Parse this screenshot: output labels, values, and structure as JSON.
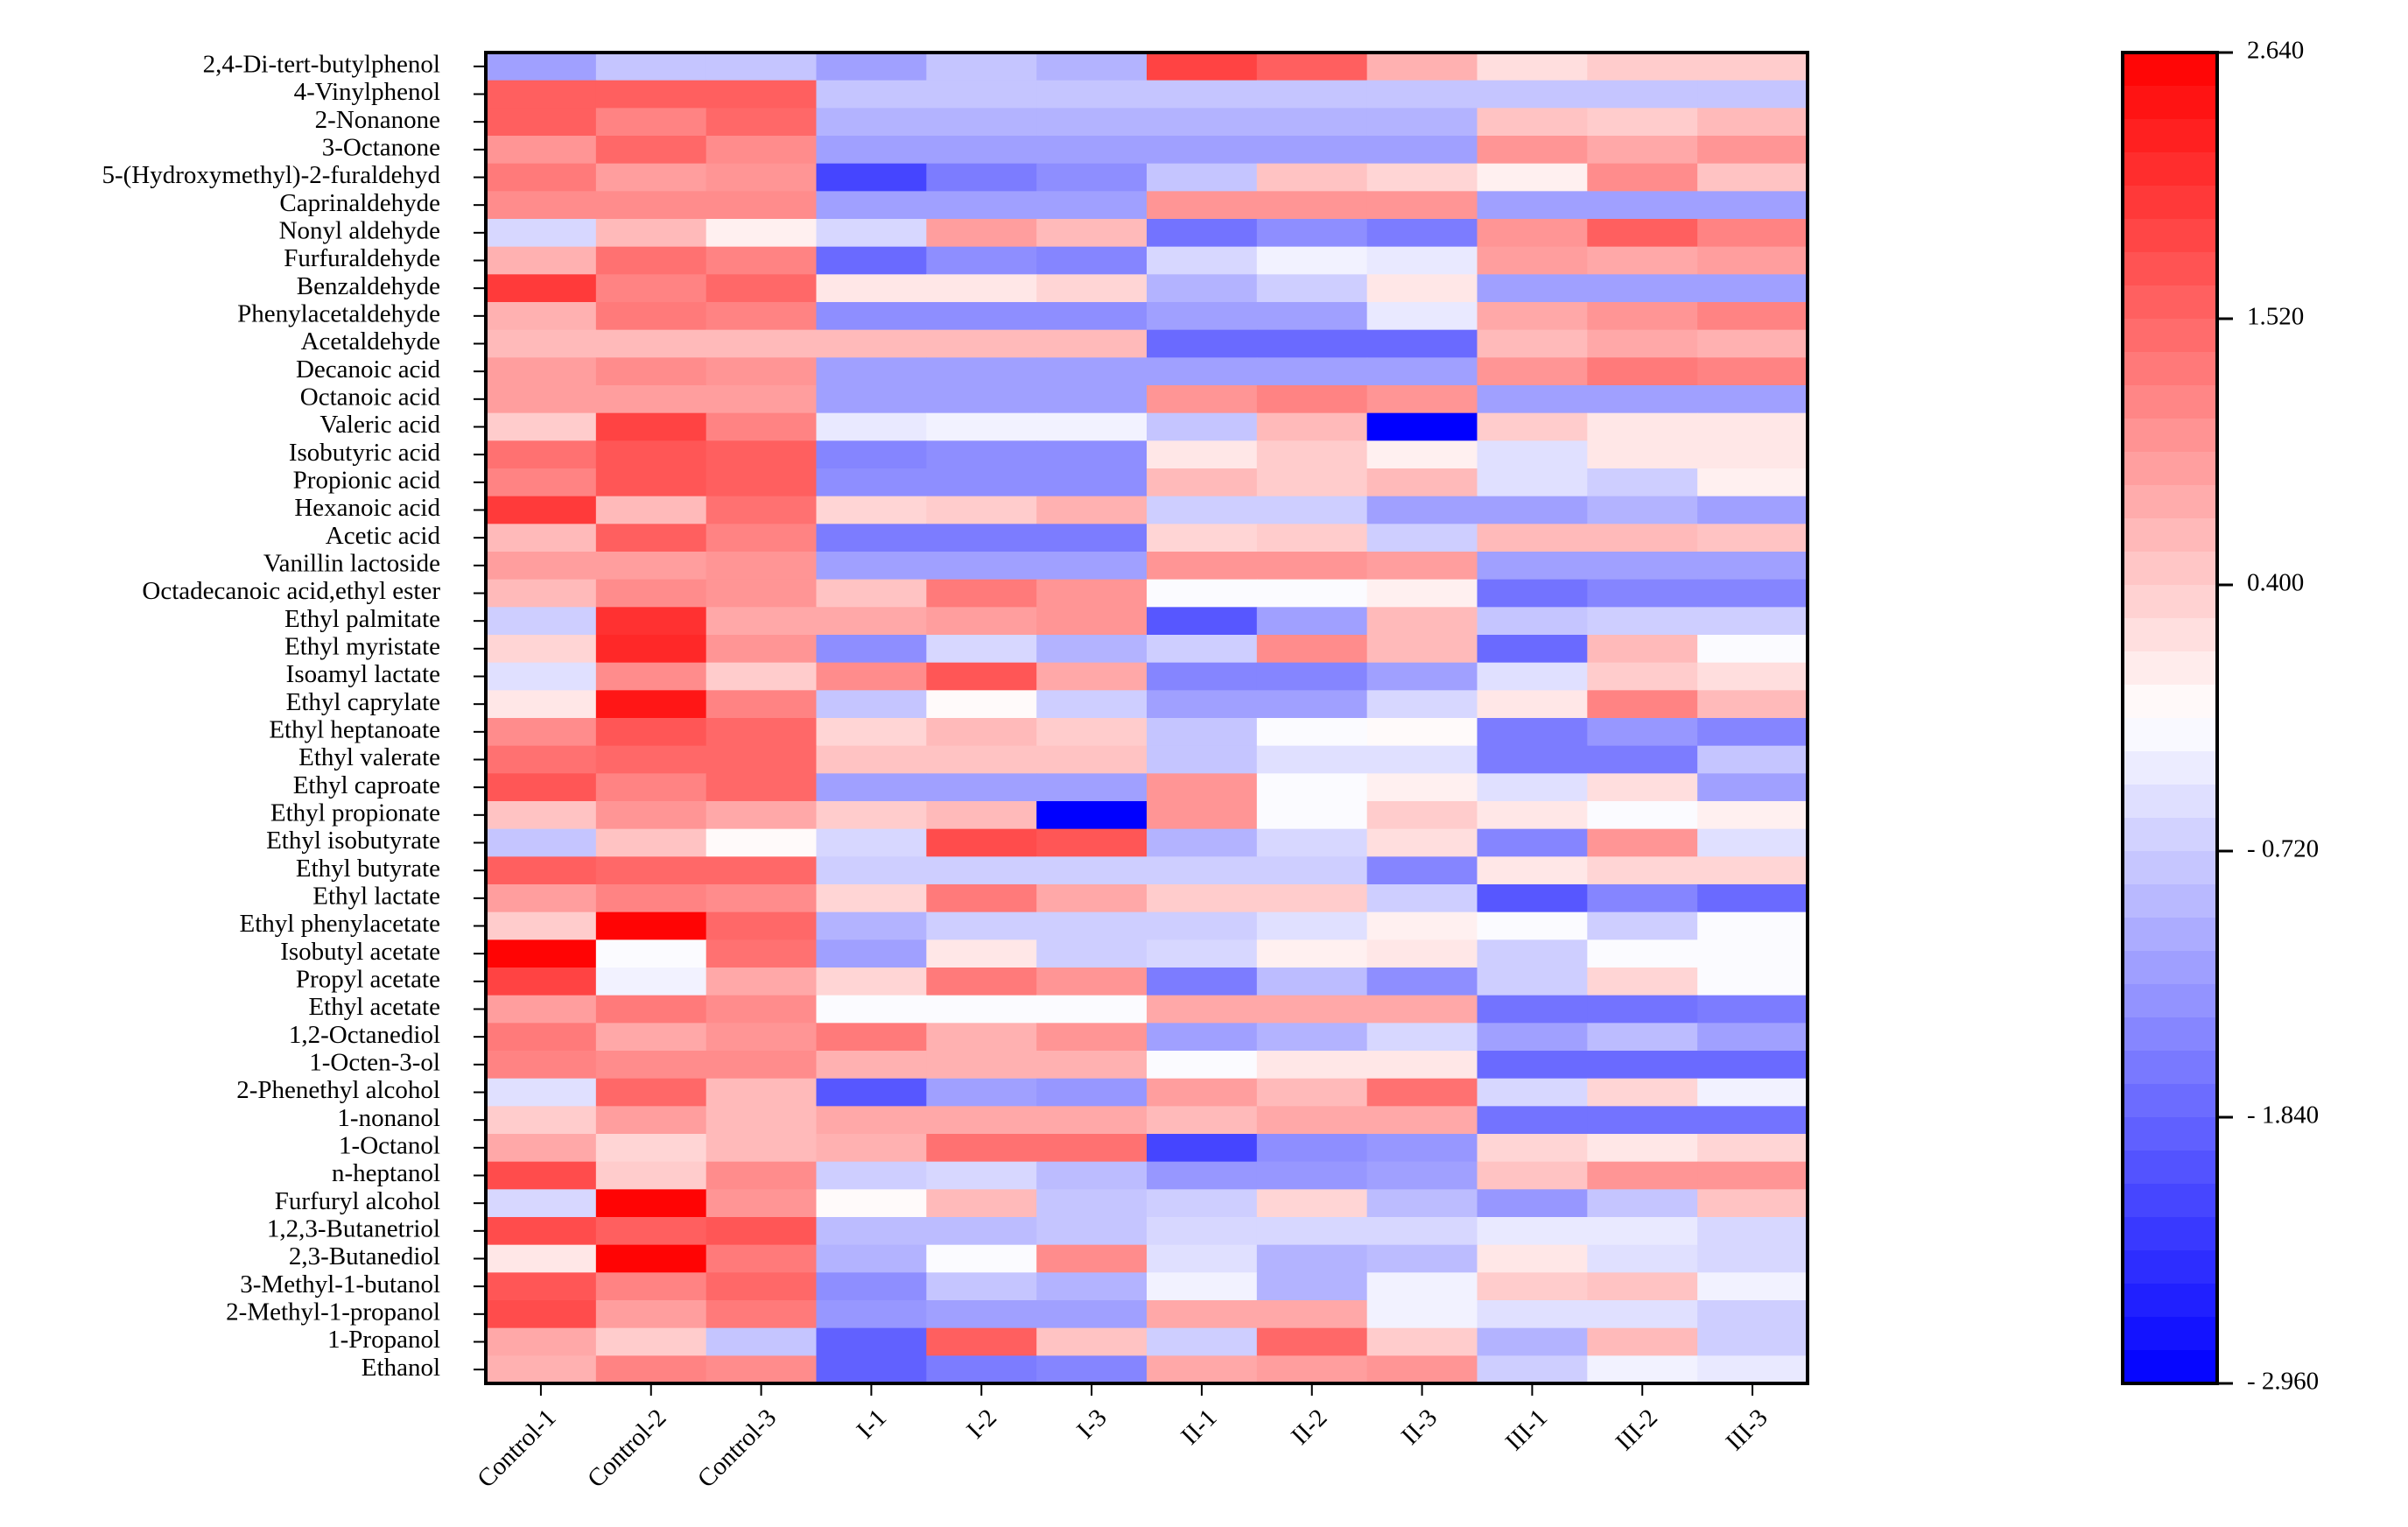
{
  "chart_data": {
    "type": "heatmap",
    "title": "",
    "xlabel": "",
    "ylabel": "",
    "columns": [
      "Control-1",
      "Control-2",
      "Control-3",
      "I-1",
      "I-2",
      "I-3",
      "II-1",
      "II-2",
      "II-3",
      "III-1",
      "III-2",
      "III-3"
    ],
    "rows": [
      "2,4-Di-tert-butylphenol",
      "4-Vinylphenol",
      "2-Nonanone",
      "3-Octanone",
      "5-(Hydroxymethyl)-2-furaldehyd",
      "Caprinaldehyde",
      "Nonyl aldehyde",
      "Furfuraldehyde",
      "Benzaldehyde",
      "Phenylacetaldehyde",
      "Acetaldehyde",
      "Decanoic acid",
      "Octanoic acid",
      "Valeric acid",
      "Isobutyric acid",
      "Propionic acid",
      "Hexanoic acid",
      "Acetic acid",
      "Vanillin lactoside",
      "Octadecanoic acid,ethyl ester",
      "Ethyl palmitate",
      "Ethyl myristate",
      "Isoamyl lactate",
      "Ethyl caprylate",
      "Ethyl heptanoate",
      "Ethyl valerate",
      "Ethyl caproate",
      "Ethyl propionate",
      "Ethyl isobutyrate",
      "Ethyl butyrate",
      "Ethyl lactate",
      "Ethyl phenylacetate",
      "Isobutyl acetate",
      "Propyl acetate",
      "Ethyl acetate",
      "1,2-Octanediol",
      "1-Octen-3-ol",
      "2-Phenethyl alcohol",
      "1-nonanol",
      "1-Octanol",
      "n-heptanol",
      "Furfuryl alcohol",
      "1,2,3-Butanetriol",
      "2,3-Butanediol",
      "3-Methyl-1-butanol",
      "2-Methyl-1-propanol",
      "1-Propanol",
      "Ethanol"
    ],
    "values": [
      [
        -1.2,
        -0.8,
        -0.8,
        -1.2,
        -0.8,
        -1.0,
        1.9,
        1.6,
        0.7,
        0.2,
        0.4,
        0.4
      ],
      [
        1.6,
        1.6,
        1.6,
        -0.8,
        -0.8,
        -0.8,
        -0.8,
        -0.8,
        -0.8,
        -0.8,
        -0.8,
        -0.8
      ],
      [
        1.6,
        1.2,
        1.5,
        -1.0,
        -1.0,
        -1.0,
        -1.0,
        -1.0,
        -1.0,
        0.5,
        0.4,
        0.6
      ],
      [
        1.0,
        1.5,
        1.1,
        -1.2,
        -1.2,
        -1.2,
        -1.2,
        -1.2,
        -1.2,
        1.0,
        0.8,
        1.0
      ],
      [
        1.3,
        0.9,
        1.0,
        -2.2,
        -1.6,
        -1.4,
        -0.8,
        0.5,
        0.3,
        0.0,
        1.1,
        0.5
      ],
      [
        1.1,
        1.1,
        1.1,
        -1.2,
        -1.2,
        -1.2,
        1.0,
        1.0,
        1.0,
        -1.2,
        -1.2,
        -1.2
      ],
      [
        -0.6,
        0.6,
        0.0,
        -0.6,
        0.9,
        0.6,
        -1.7,
        -1.4,
        -1.6,
        1.0,
        1.6,
        1.2
      ],
      [
        0.7,
        1.4,
        1.2,
        -1.8,
        -1.4,
        -1.5,
        -0.6,
        -0.3,
        -0.4,
        0.9,
        0.8,
        0.9
      ],
      [
        2.0,
        1.2,
        1.5,
        0.1,
        0.1,
        0.3,
        -1.0,
        -0.7,
        0.1,
        -1.2,
        -1.2,
        -1.2
      ],
      [
        0.7,
        1.3,
        1.2,
        -1.4,
        -1.4,
        -1.4,
        -1.2,
        -1.2,
        -0.4,
        0.8,
        1.0,
        1.2
      ],
      [
        0.6,
        0.6,
        0.6,
        0.6,
        0.6,
        0.6,
        -1.8,
        -1.8,
        -1.8,
        0.6,
        0.8,
        0.7
      ],
      [
        0.9,
        1.1,
        1.0,
        -1.2,
        -1.2,
        -1.2,
        -1.2,
        -1.2,
        -1.2,
        1.0,
        1.3,
        1.2
      ],
      [
        0.9,
        0.9,
        0.9,
        -1.2,
        -1.2,
        -1.2,
        1.0,
        1.2,
        1.0,
        -1.2,
        -1.2,
        -1.2
      ],
      [
        0.4,
        1.9,
        1.2,
        -0.4,
        -0.3,
        -0.3,
        -0.8,
        0.6,
        -3.0,
        0.4,
        0.1,
        0.1
      ],
      [
        1.4,
        1.7,
        1.6,
        -1.5,
        -1.4,
        -1.4,
        0.1,
        0.4,
        0.0,
        -0.5,
        0.1,
        0.1
      ],
      [
        1.2,
        1.7,
        1.6,
        -1.4,
        -1.4,
        -1.4,
        0.6,
        0.4,
        0.6,
        -0.5,
        -0.7,
        0.0
      ],
      [
        2.0,
        0.6,
        1.4,
        0.3,
        0.4,
        0.7,
        -0.7,
        -0.7,
        -1.2,
        -1.2,
        -1.0,
        -1.2
      ],
      [
        0.6,
        1.6,
        1.2,
        -1.6,
        -1.6,
        -1.6,
        0.3,
        0.4,
        -0.7,
        0.6,
        0.6,
        0.5
      ],
      [
        0.9,
        0.9,
        1.0,
        -1.2,
        -1.2,
        -1.2,
        1.0,
        1.0,
        0.9,
        -1.2,
        -1.2,
        -1.2
      ],
      [
        0.6,
        1.1,
        1.0,
        0.5,
        1.3,
        1.0,
        -0.2,
        -0.2,
        0.0,
        -1.7,
        -1.5,
        -1.5
      ],
      [
        -0.7,
        2.1,
        0.8,
        0.8,
        0.9,
        1.0,
        -2.0,
        -1.2,
        0.6,
        -0.8,
        -0.7,
        -0.7
      ],
      [
        0.3,
        2.2,
        1.0,
        -1.4,
        -0.6,
        -1.0,
        -0.7,
        1.1,
        0.6,
        -1.8,
        0.6,
        -0.2
      ],
      [
        -0.5,
        1.1,
        0.4,
        1.1,
        1.7,
        0.8,
        -1.5,
        -1.5,
        -1.2,
        -0.5,
        0.4,
        0.2
      ],
      [
        0.1,
        2.4,
        1.2,
        -0.8,
        -0.1,
        -0.7,
        -1.2,
        -1.2,
        -0.6,
        0.1,
        1.2,
        0.6
      ],
      [
        1.1,
        1.7,
        1.5,
        0.3,
        0.6,
        0.4,
        -0.8,
        -0.2,
        -0.1,
        -1.6,
        -1.3,
        -1.5
      ],
      [
        1.4,
        1.5,
        1.5,
        0.5,
        0.5,
        0.5,
        -0.8,
        -0.5,
        -0.5,
        -1.6,
        -1.6,
        -0.8
      ],
      [
        1.7,
        1.2,
        1.5,
        -1.2,
        -1.2,
        -1.2,
        1.0,
        -0.2,
        0.0,
        -0.5,
        0.2,
        -1.2
      ],
      [
        0.5,
        1.0,
        0.8,
        0.4,
        0.6,
        -3.0,
        1.0,
        -0.2,
        0.4,
        0.1,
        -0.2,
        0.0
      ],
      [
        -0.8,
        0.5,
        -0.1,
        -0.6,
        1.8,
        1.7,
        -1.0,
        -0.6,
        0.2,
        -1.5,
        1.0,
        -0.5
      ],
      [
        1.6,
        1.5,
        1.5,
        -0.7,
        -0.7,
        -0.7,
        -0.7,
        -0.7,
        -1.5,
        0.1,
        0.3,
        0.3
      ],
      [
        0.9,
        1.2,
        1.1,
        0.3,
        1.3,
        0.8,
        0.4,
        0.4,
        -0.7,
        -2.0,
        -1.5,
        -1.8
      ],
      [
        0.4,
        2.6,
        1.5,
        -1.0,
        -0.7,
        -0.7,
        -0.7,
        -0.5,
        0.0,
        -0.2,
        -0.7,
        -0.2
      ],
      [
        2.6,
        -0.2,
        1.4,
        -1.2,
        0.1,
        -0.7,
        -0.6,
        0.0,
        0.1,
        -0.7,
        -0.2,
        -0.2
      ],
      [
        1.9,
        -0.3,
        0.8,
        0.3,
        1.3,
        1.0,
        -1.6,
        -0.9,
        -1.4,
        -0.7,
        0.3,
        -0.2
      ],
      [
        0.9,
        1.3,
        1.1,
        -0.2,
        -0.2,
        -0.2,
        0.8,
        0.8,
        0.8,
        -1.7,
        -1.7,
        -1.6
      ],
      [
        1.3,
        0.8,
        1.0,
        1.3,
        0.7,
        1.0,
        -1.2,
        -1.0,
        -0.6,
        -1.2,
        -0.9,
        -1.2
      ],
      [
        1.2,
        1.1,
        1.1,
        0.7,
        0.7,
        0.7,
        -0.2,
        0.1,
        0.1,
        -1.8,
        -1.8,
        -1.8
      ],
      [
        -0.5,
        1.5,
        0.6,
        -2.0,
        -1.2,
        -1.3,
        0.9,
        0.6,
        1.4,
        -0.6,
        0.3,
        -0.3
      ],
      [
        0.4,
        0.9,
        0.6,
        0.8,
        0.8,
        0.8,
        0.6,
        0.8,
        0.8,
        -1.7,
        -1.7,
        -1.7
      ],
      [
        0.8,
        0.3,
        0.6,
        0.7,
        1.4,
        1.4,
        -2.2,
        -1.4,
        -1.3,
        0.3,
        0.1,
        0.3
      ],
      [
        1.8,
        0.4,
        1.1,
        -0.7,
        -0.6,
        -0.9,
        -1.3,
        -1.3,
        -1.2,
        0.5,
        1.0,
        1.0
      ],
      [
        -0.6,
        2.6,
        1.0,
        -0.1,
        0.6,
        -0.8,
        -0.7,
        0.3,
        -0.9,
        -1.3,
        -0.8,
        0.5
      ],
      [
        1.8,
        1.6,
        1.7,
        -0.9,
        -0.9,
        -0.8,
        -0.6,
        -0.6,
        -0.6,
        -0.4,
        -0.4,
        -0.6
      ],
      [
        0.1,
        2.6,
        1.3,
        -1.0,
        -0.2,
        1.1,
        -0.5,
        -1.0,
        -0.9,
        0.1,
        -0.5,
        -0.6
      ],
      [
        1.7,
        1.2,
        1.5,
        -1.4,
        -0.8,
        -1.0,
        -0.3,
        -1.0,
        -0.3,
        0.4,
        0.5,
        -0.3
      ],
      [
        1.8,
        0.9,
        1.3,
        -1.3,
        -1.2,
        -1.2,
        0.8,
        0.8,
        -0.3,
        -0.5,
        -0.5,
        -0.7
      ],
      [
        0.8,
        0.4,
        -0.8,
        -1.9,
        1.6,
        0.5,
        -0.7,
        1.5,
        0.4,
        -1.0,
        0.6,
        -0.7
      ],
      [
        0.7,
        1.2,
        1.1,
        -1.9,
        -1.6,
        -1.5,
        0.8,
        0.9,
        1.0,
        -0.7,
        -0.3,
        -0.4
      ]
    ],
    "colorbar": {
      "min": -2.96,
      "max": 2.64,
      "ticks": [
        "2.640",
        "1.520",
        "0.400",
        "- 0.720",
        "- 1.840",
        "- 2.960"
      ],
      "colors": {
        "low": "#0000ff",
        "mid": "#ffffff",
        "high": "#ff0000"
      }
    }
  }
}
